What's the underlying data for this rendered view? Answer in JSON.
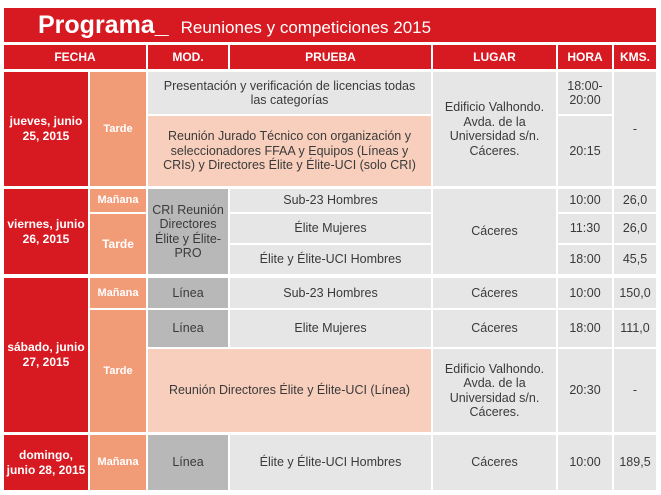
{
  "title": {
    "brand": "Programa_",
    "subtitle": "Reuniones y competiciones 2015"
  },
  "headers": {
    "fecha": "FECHA",
    "mod": "MOD.",
    "prueba": "PRUEBA",
    "lugar": "LUGAR",
    "hora": "HORA",
    "kms": "KMS."
  },
  "days": {
    "d1": "jueves, junio 25, 2015",
    "d2": "viernes, junio 26, 2015",
    "d3": "sábado, junio 27, 2015",
    "d4": "domingo, junio 28, 2015"
  },
  "periods": {
    "tarde": "Tarde",
    "manana": "Mañana"
  },
  "rows": {
    "r1_prueba": "Presentación y verificación de licencias todas las categorías",
    "r1_hora": "18:00-20:00",
    "r2_prueba": "Reunión Jurado Técnico con organización y seleccionadores FFAA y Equipos (Líneas y CRIs) y Directores Élite y Élite-UCI (solo CRI)",
    "r2_hora": "20:15",
    "d1_lugar": "Edificio Valhondo. Avda. de la Universidad s/n. Cáceres.",
    "d1_km": "-",
    "d2_mod": "CRI Reunión Directores Élite y Élite-PRO",
    "r3_prueba": "Sub-23 Hombres",
    "r3_hora": "10:00",
    "r3_km": "26,0",
    "r4_prueba": "Élite Mujeres",
    "r4_hora": "11:30",
    "r4_km": "26,0",
    "r5_prueba": "Élite y Élite-UCI Hombres",
    "r5_hora": "18:00",
    "r5_km": "45,5",
    "d2_lugar": "Cáceres",
    "r6_mod": "Línea",
    "r6_prueba": "Sub-23 Hombres",
    "r6_lugar": "Cáceres",
    "r6_hora": "10:00",
    "r6_km": "150,0",
    "r7_mod": "Línea",
    "r7_prueba": "Elite Mujeres",
    "r7_lugar": "Cáceres",
    "r7_hora": "18:00",
    "r7_km": "111,0",
    "r8_prueba": "Reunión Directores Élite y Élite-UCI (Línea)",
    "r8_lugar": "Edificio Valhondo. Avda. de la Universidad s/n. Cáceres.",
    "r8_hora": "20:30",
    "r8_km": "-",
    "r9_mod": "Línea",
    "r9_prueba": "Élite y Élite-UCI Hombres",
    "r9_lugar": "Cáceres",
    "r9_hora": "10:00",
    "r9_km": "189,5"
  },
  "colors": {
    "red": "#d71921",
    "salmon": "#f29b77",
    "peach": "#f8cfbd",
    "gray": "#e6e6e6",
    "dark_gray": "#b8b8b8"
  }
}
